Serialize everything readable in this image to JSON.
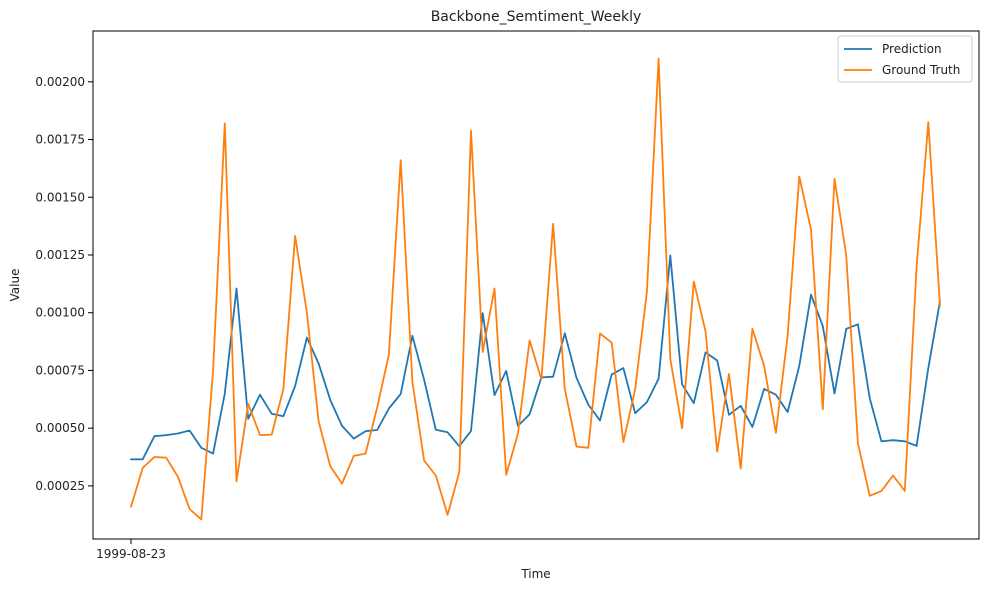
{
  "chart_data": {
    "type": "line",
    "title": "Backbone_Semtiment_Weekly",
    "xlabel": "Time",
    "ylabel": "Value",
    "x_tick_labels": [
      "1999-08-23"
    ],
    "ylim": [
      2e-05,
      0.00222
    ],
    "y_ticks": [
      0.00025,
      0.0005,
      0.00075,
      0.001,
      0.00125,
      0.0015,
      0.00175,
      0.002
    ],
    "y_tick_labels": [
      "0.00025",
      "0.00050",
      "0.00075",
      "0.00100",
      "0.00125",
      "0.00150",
      "0.00175",
      "0.00200"
    ],
    "grid": false,
    "legend_position": "top-right",
    "series": [
      {
        "name": "Prediction",
        "color": "#1f77b4",
        "values": [
          0.000365,
          0.000365,
          0.000465,
          0.00047,
          0.000477,
          0.00049,
          0.000415,
          0.00039,
          0.00065,
          0.001105,
          0.00054,
          0.000645,
          0.000562,
          0.000552,
          0.000682,
          0.000892,
          0.00078,
          0.000622,
          0.00051,
          0.000455,
          0.000487,
          0.000492,
          0.000585,
          0.000648,
          0.0009,
          0.00071,
          0.000493,
          0.000482,
          0.000422,
          0.000488,
          0.000998,
          0.000643,
          0.000748,
          0.00051,
          0.00056,
          0.00072,
          0.000723,
          0.000911,
          0.000718,
          0.000602,
          0.000533,
          0.000733,
          0.00076,
          0.000565,
          0.000613,
          0.000714,
          0.001248,
          0.00069,
          0.000608,
          0.000828,
          0.000793,
          0.000558,
          0.000597,
          0.000505,
          0.00067,
          0.000645,
          0.00057,
          0.00077,
          0.001078,
          0.000942,
          0.00065,
          0.00093,
          0.00095,
          0.00063,
          0.000443,
          0.000448,
          0.000443,
          0.000423,
          0.00076,
          0.00105
        ]
      },
      {
        "name": "Ground Truth",
        "color": "#ff7f0e",
        "values": [
          0.00016,
          0.000328,
          0.000375,
          0.000372,
          0.00029,
          0.00015,
          0.000105,
          0.00075,
          0.00182,
          0.00027,
          0.000605,
          0.00047,
          0.000472,
          0.00067,
          0.001333,
          0.001,
          0.00053,
          0.000335,
          0.00026,
          0.00038,
          0.00039,
          0.00059,
          0.00082,
          0.00166,
          0.0007,
          0.00036,
          0.000295,
          0.000125,
          0.00031,
          0.001788,
          0.00083,
          0.001105,
          0.000298,
          0.000475,
          0.00088,
          0.000712,
          0.001385,
          0.00067,
          0.00042,
          0.000415,
          0.00091,
          0.00087,
          0.00044,
          0.00067,
          0.00109,
          0.0021,
          0.0008,
          0.0005,
          0.001135,
          0.00092,
          0.000398,
          0.000735,
          0.000325,
          0.00093,
          0.00077,
          0.00048,
          0.0009,
          0.00159,
          0.00136,
          0.000582,
          0.00158,
          0.00125,
          0.000435,
          0.000207,
          0.000228,
          0.000295,
          0.000228,
          0.0012,
          0.001825,
          0.00103
        ]
      }
    ]
  }
}
